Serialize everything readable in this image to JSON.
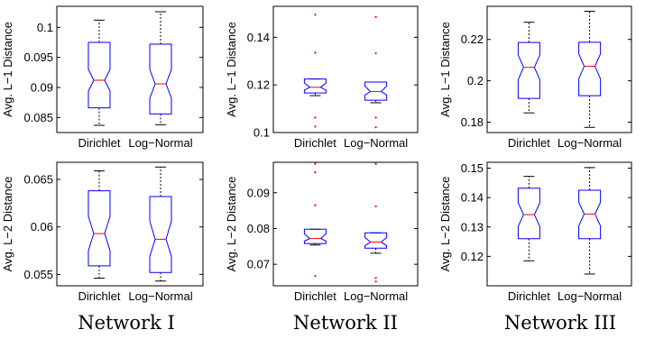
{
  "colors": {
    "box": "#0000ff",
    "median": "#ff0000",
    "outlier": "#ff0000",
    "whisker": "#000000"
  },
  "network_labels": [
    "Network I",
    "Network II",
    "Network III"
  ],
  "chart_data": [
    {
      "type": "box",
      "network": "Network I",
      "ylabel": "Avg. L−1 Distance",
      "categories": [
        "Dirichlet",
        "Log−Normal"
      ],
      "ylim": [
        0.0825,
        0.1035
      ],
      "yticks": [
        {
          "v": 0.085,
          "label": "0.085"
        },
        {
          "v": 0.09,
          "label": "0.09"
        },
        {
          "v": 0.095,
          "label": "0.095"
        },
        {
          "v": 0.1,
          "label": "0.1"
        }
      ],
      "boxes": [
        {
          "min": 0.0837,
          "q1": 0.0866,
          "median": 0.0912,
          "q3": 0.0975,
          "max": 0.1012,
          "notch_lo": 0.0894,
          "notch_hi": 0.093,
          "outliers": []
        },
        {
          "min": 0.0838,
          "q1": 0.0856,
          "median": 0.0906,
          "q3": 0.0972,
          "max": 0.1026,
          "notch_lo": 0.0882,
          "notch_hi": 0.093,
          "outliers": []
        }
      ]
    },
    {
      "type": "box",
      "network": "Network II",
      "ylabel": "Avg. L−1 Distance",
      "categories": [
        "Dirichlet",
        "Log−Normal"
      ],
      "ylim": [
        0.1,
        0.153
      ],
      "yticks": [
        {
          "v": 0.1,
          "label": "0.1"
        },
        {
          "v": 0.12,
          "label": "0.12"
        },
        {
          "v": 0.14,
          "label": "0.14"
        }
      ],
      "boxes": [
        {
          "min": 0.1155,
          "q1": 0.1166,
          "median": 0.119,
          "q3": 0.1225,
          "max": 0.1225,
          "notch_lo": 0.1178,
          "notch_hi": 0.1208,
          "outliers": [
            0.1025,
            0.1063,
            0.1335,
            0.1495
          ]
        },
        {
          "min": 0.1125,
          "q1": 0.1136,
          "median": 0.1172,
          "q3": 0.1212,
          "max": 0.1212,
          "notch_lo": 0.1158,
          "notch_hi": 0.1195,
          "outliers": [
            0.1022,
            0.1063,
            0.1333,
            0.1485
          ]
        }
      ]
    },
    {
      "type": "box",
      "network": "Network III",
      "ylabel": "Avg. L−1 Distance",
      "categories": [
        "Dirichlet",
        "Log−Normal"
      ],
      "ylim": [
        0.175,
        0.236
      ],
      "yticks": [
        {
          "v": 0.18,
          "label": "0.18"
        },
        {
          "v": 0.2,
          "label": "0.2"
        },
        {
          "v": 0.22,
          "label": "0.22"
        }
      ],
      "boxes": [
        {
          "min": 0.1845,
          "q1": 0.1915,
          "median": 0.2065,
          "q3": 0.2185,
          "max": 0.2283,
          "notch_lo": 0.2005,
          "notch_hi": 0.2125,
          "outliers": []
        },
        {
          "min": 0.1775,
          "q1": 0.1928,
          "median": 0.207,
          "q3": 0.2186,
          "max": 0.2336,
          "notch_lo": 0.201,
          "notch_hi": 0.213,
          "outliers": []
        }
      ]
    },
    {
      "type": "box",
      "network": "Network I",
      "ylabel": "Avg. L−2 Distance",
      "categories": [
        "Dirichlet",
        "Log−Normal"
      ],
      "ylim": [
        0.0538,
        0.0668
      ],
      "yticks": [
        {
          "v": 0.055,
          "label": "0.055"
        },
        {
          "v": 0.06,
          "label": "0.06"
        },
        {
          "v": 0.065,
          "label": "0.065"
        }
      ],
      "boxes": [
        {
          "min": 0.0546,
          "q1": 0.0559,
          "median": 0.0593,
          "q3": 0.0638,
          "max": 0.0659,
          "notch_lo": 0.0575,
          "notch_hi": 0.0611,
          "outliers": []
        },
        {
          "min": 0.0543,
          "q1": 0.0552,
          "median": 0.0587,
          "q3": 0.0632,
          "max": 0.0663,
          "notch_lo": 0.0569,
          "notch_hi": 0.0606,
          "outliers": []
        }
      ]
    },
    {
      "type": "box",
      "network": "Network II",
      "ylabel": "Avg. L−2 Distance",
      "categories": [
        "Dirichlet",
        "Log−Normal"
      ],
      "ylim": [
        0.064,
        0.0985
      ],
      "yticks": [
        {
          "v": 0.07,
          "label": "0.07"
        },
        {
          "v": 0.08,
          "label": "0.08"
        },
        {
          "v": 0.09,
          "label": "0.09"
        }
      ],
      "boxes": [
        {
          "min": 0.0754,
          "q1": 0.0758,
          "median": 0.0772,
          "q3": 0.0798,
          "max": 0.0798,
          "notch_lo": 0.0765,
          "notch_hi": 0.0785,
          "outliers": [
            0.0667,
            0.0865,
            0.0957,
            0.0981
          ]
        },
        {
          "min": 0.0731,
          "q1": 0.0745,
          "median": 0.0762,
          "q3": 0.0788,
          "max": 0.0788,
          "notch_lo": 0.0752,
          "notch_hi": 0.0775,
          "outliers": [
            0.0652,
            0.0662,
            0.0862,
            0.0981
          ]
        }
      ]
    },
    {
      "type": "box",
      "network": "Network III",
      "ylabel": "Avg. L−2 Distance",
      "categories": [
        "Dirichlet",
        "Log−Normal"
      ],
      "ylim": [
        0.11,
        0.152
      ],
      "yticks": [
        {
          "v": 0.12,
          "label": "0.12"
        },
        {
          "v": 0.13,
          "label": "0.13"
        },
        {
          "v": 0.14,
          "label": "0.14"
        },
        {
          "v": 0.15,
          "label": "0.15"
        }
      ],
      "boxes": [
        {
          "min": 0.1185,
          "q1": 0.126,
          "median": 0.1342,
          "q3": 0.1432,
          "max": 0.1472,
          "notch_lo": 0.1302,
          "notch_hi": 0.1382,
          "outliers": []
        },
        {
          "min": 0.114,
          "q1": 0.126,
          "median": 0.1344,
          "q3": 0.1425,
          "max": 0.1502,
          "notch_lo": 0.1304,
          "notch_hi": 0.1384,
          "outliers": []
        }
      ]
    }
  ]
}
